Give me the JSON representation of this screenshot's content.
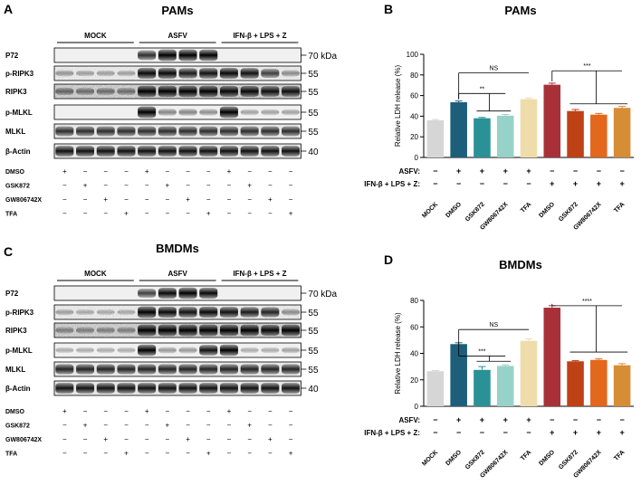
{
  "panels": {
    "A": {
      "letter": "A",
      "title": "PAMs",
      "groups": [
        "MOCK",
        "ASFV",
        "IFN-β + LPS + Z"
      ],
      "rows": [
        "P72",
        "p-RIPK3",
        "RIPK3",
        "p-MLKL",
        "MLKL",
        "β-Actin"
      ],
      "markers": [
        "70 kDa",
        "55",
        "55",
        "55",
        "55",
        "40"
      ],
      "treatments": [
        {
          "name": "DMSO",
          "signs": [
            "+",
            "−",
            "−",
            "−",
            "+",
            "−",
            "−",
            "−",
            "+",
            "−",
            "−",
            "−"
          ]
        },
        {
          "name": "GSK872",
          "signs": [
            "−",
            "+",
            "−",
            "−",
            "−",
            "+",
            "−",
            "−",
            "−",
            "+",
            "−",
            "−"
          ]
        },
        {
          "name": "GW806742X",
          "signs": [
            "−",
            "−",
            "+",
            "−",
            "−",
            "−",
            "+",
            "−",
            "−",
            "−",
            "+",
            "−"
          ]
        },
        {
          "name": "TFA",
          "signs": [
            "−",
            "−",
            "−",
            "+",
            "−",
            "−",
            "−",
            "+",
            "−",
            "−",
            "−",
            "+"
          ]
        }
      ]
    },
    "C": {
      "letter": "C",
      "title": "BMDMs",
      "groups": [
        "MOCK",
        "ASFV",
        "IFN-β + LPS + Z"
      ],
      "rows": [
        "P72",
        "p-RIPK3",
        "RIPK3",
        "p-MLKL",
        "MLKL",
        "β-Actin"
      ],
      "markers": [
        "70 kDa",
        "55",
        "55",
        "55",
        "55",
        "40"
      ],
      "treatments": [
        {
          "name": "DMSO",
          "signs": [
            "+",
            "−",
            "−",
            "−",
            "+",
            "−",
            "−",
            "−",
            "+",
            "−",
            "−",
            "−"
          ]
        },
        {
          "name": "GSK872",
          "signs": [
            "−",
            "+",
            "−",
            "−",
            "−",
            "+",
            "−",
            "−",
            "−",
            "+",
            "−",
            "−"
          ]
        },
        {
          "name": "GW806742X",
          "signs": [
            "−",
            "−",
            "+",
            "−",
            "−",
            "−",
            "+",
            "−",
            "−",
            "−",
            "+",
            "−"
          ]
        },
        {
          "name": "TFA",
          "signs": [
            "−",
            "−",
            "−",
            "+",
            "−",
            "−",
            "−",
            "+",
            "−",
            "−",
            "−",
            "+"
          ]
        }
      ]
    },
    "B": {
      "letter": "B"
    },
    "D": {
      "letter": "D"
    }
  },
  "chart_data": [
    {
      "type": "bar",
      "panel": "B",
      "title": "PAMs",
      "ylabel": "Relative LDH release (%)",
      "ylim": [
        0,
        100
      ],
      "yticks": [
        0,
        20,
        40,
        60,
        80,
        100
      ],
      "categories": [
        "MOCK",
        "DMSO",
        "GSK872",
        "GW806742X",
        "TFA",
        "DMSO",
        "GSK872",
        "GW806742X",
        "TFA"
      ],
      "values": [
        36,
        53.5,
        38,
        40.5,
        56.5,
        70.5,
        45,
        41.5,
        48
      ],
      "errors": [
        0.8,
        1.2,
        0.8,
        1.2,
        1.2,
        1.5,
        1.5,
        1.2,
        1.5
      ],
      "colors": [
        "#d6d6d6",
        "#1d5f7a",
        "#2a9296",
        "#97d2c8",
        "#efdcab",
        "#a83139",
        "#bf4116",
        "#e3671c",
        "#d78d36"
      ],
      "condition_rows": [
        {
          "label": "ASFV:",
          "signs": [
            "−",
            "+",
            "+",
            "+",
            "+",
            "−",
            "−",
            "−",
            "−"
          ]
        },
        {
          "label": "IFN-β + LPS + Z:",
          "signs": [
            "−",
            "−",
            "−",
            "−",
            "−",
            "+",
            "+",
            "+",
            "+"
          ]
        }
      ],
      "significance": [
        {
          "text": "NS",
          "from": 1,
          "to": [
            4
          ]
        },
        {
          "text": "**",
          "from": 1,
          "to": [
            2,
            3
          ]
        },
        {
          "text": "***",
          "from": 5,
          "to": [
            6,
            7,
            8
          ]
        }
      ]
    },
    {
      "type": "bar",
      "panel": "D",
      "title": "BMDMs",
      "ylabel": "Relative LDH release (%)",
      "ylim": [
        0,
        80
      ],
      "yticks": [
        0,
        20,
        40,
        60,
        80
      ],
      "categories": [
        "MOCK",
        "DMSO",
        "GSK872",
        "GW806742X",
        "TFA",
        "DMSO",
        "GSK872",
        "GW806742X",
        "TFA"
      ],
      "values": [
        26.5,
        47,
        27.5,
        30.5,
        49.5,
        74.5,
        34,
        35,
        31
      ],
      "errors": [
        0.5,
        1.0,
        2.5,
        0.8,
        1.5,
        1.5,
        0.5,
        0.8,
        1.2
      ],
      "colors": [
        "#d6d6d6",
        "#1d5f7a",
        "#2a9296",
        "#97d2c8",
        "#efdcab",
        "#a83139",
        "#bf4116",
        "#e3671c",
        "#d78d36"
      ],
      "condition_rows": [
        {
          "label": "ASFV:",
          "signs": [
            "−",
            "+",
            "+",
            "+",
            "+",
            "−",
            "−",
            "−",
            "−"
          ]
        },
        {
          "label": "IFN-β + LPS + Z:",
          "signs": [
            "−",
            "−",
            "−",
            "−",
            "−",
            "+",
            "+",
            "+",
            "+"
          ]
        }
      ],
      "significance": [
        {
          "text": "NS",
          "from": 1,
          "to": [
            4
          ]
        },
        {
          "text": "***",
          "from": 1,
          "to": [
            2,
            3
          ]
        },
        {
          "text": "****",
          "from": 5,
          "to": [
            6,
            7,
            8
          ]
        }
      ]
    }
  ]
}
